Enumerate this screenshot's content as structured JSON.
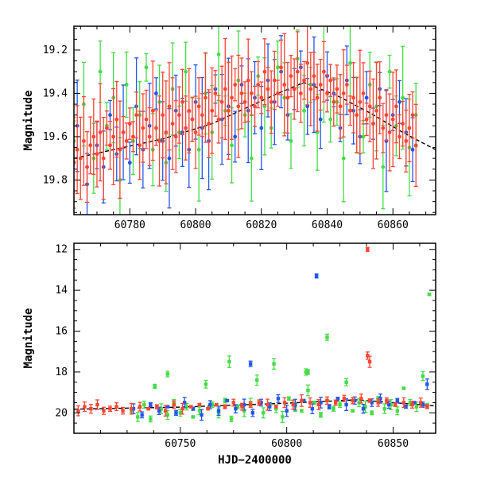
{
  "chart_data": [
    {
      "type": "scatter",
      "title": "",
      "xlabel": "",
      "ylabel": "Magnitude",
      "xlim": [
        60763,
        60873
      ],
      "ylim": [
        19.96,
        19.09
      ],
      "y_inverted": true,
      "grid": false,
      "x_ticks": [
        60780,
        60800,
        60820,
        60840,
        60860
      ],
      "y_ticks": [
        19.2,
        19.4,
        19.6,
        19.8
      ],
      "model_curve": {
        "x": [
          60763,
          60775,
          60790,
          60805,
          60815,
          60825,
          60833,
          60843,
          60853,
          60863,
          60873
        ],
        "y": [
          19.7,
          19.66,
          19.61,
          19.54,
          19.47,
          19.4,
          19.35,
          19.41,
          19.49,
          19.58,
          19.66
        ]
      },
      "series": [
        {
          "color": "#44dd44",
          "x": [
            60763,
            60766,
            60769,
            60771,
            60773,
            60775,
            60777,
            60779,
            60781,
            60783,
            60785,
            60787,
            60789,
            60791,
            60793,
            60795,
            60797,
            60799,
            60801,
            60803,
            60805,
            60807,
            60809,
            60811,
            60813,
            60815,
            60817,
            60819,
            60821,
            60823,
            60825,
            60827,
            60829,
            60831,
            60833,
            60835,
            60837,
            60839,
            60841,
            60843,
            60845,
            60847,
            60849,
            60851,
            60853,
            60855,
            60857,
            60859,
            60861,
            60863,
            60865,
            60867
          ],
          "y": [
            19.62,
            19.45,
            19.7,
            19.3,
            19.55,
            19.42,
            19.8,
            19.36,
            19.62,
            19.5,
            19.28,
            19.66,
            19.44,
            19.72,
            19.38,
            19.58,
            19.3,
            19.52,
            19.66,
            19.4,
            19.58,
            19.22,
            19.48,
            19.64,
            19.34,
            19.5,
            19.7,
            19.32,
            19.46,
            19.56,
            19.28,
            19.42,
            19.62,
            19.24,
            19.48,
            19.36,
            19.58,
            19.3,
            19.52,
            19.44,
            19.7,
            19.26,
            19.5,
            19.6,
            19.36,
            19.46,
            19.74,
            19.3,
            19.55,
            19.42,
            19.65,
            19.5
          ]
        },
        {
          "color": "#2255ee",
          "x": [
            60764,
            60767,
            60770,
            60772,
            60774,
            60776,
            60778,
            60780,
            60782,
            60784,
            60786,
            60788,
            60790,
            60792,
            60794,
            60796,
            60798,
            60800,
            60802,
            60804,
            60806,
            60808,
            60810,
            60812,
            60814,
            60816,
            60818,
            60820,
            60822,
            60824,
            60826,
            60828,
            60830,
            60832,
            60834,
            60836,
            60838,
            60840,
            60842,
            60844,
            60846,
            60848,
            60850,
            60852,
            60854,
            60856,
            60858,
            60860,
            60862,
            60864,
            60866
          ],
          "y": [
            19.55,
            19.82,
            19.64,
            19.74,
            19.5,
            19.68,
            19.58,
            19.72,
            19.46,
            19.66,
            19.55,
            19.4,
            19.62,
            19.7,
            19.48,
            19.58,
            19.66,
            19.44,
            19.56,
            19.62,
            19.38,
            19.52,
            19.46,
            19.6,
            19.36,
            19.48,
            19.42,
            19.56,
            19.34,
            19.44,
            19.3,
            19.5,
            19.38,
            19.28,
            19.46,
            19.36,
            19.52,
            19.32,
            19.4,
            19.56,
            19.34,
            19.48,
            19.6,
            19.42,
            19.54,
            19.38,
            19.62,
            19.5,
            19.44,
            19.58,
            19.66
          ]
        },
        {
          "color": "#ff4433",
          "x": [
            60763,
            60764,
            60765,
            60766,
            60767,
            60768,
            60769,
            60770,
            60771,
            60772,
            60773,
            60774,
            60775,
            60776,
            60777,
            60778,
            60779,
            60780,
            60781,
            60782,
            60783,
            60784,
            60785,
            60786,
            60787,
            60788,
            60789,
            60790,
            60791,
            60792,
            60793,
            60794,
            60795,
            60796,
            60797,
            60798,
            60799,
            60800,
            60801,
            60802,
            60803,
            60804,
            60805,
            60806,
            60807,
            60808,
            60809,
            60810,
            60811,
            60812,
            60813,
            60814,
            60815,
            60816,
            60817,
            60818,
            60819,
            60820,
            60821,
            60822,
            60823,
            60824,
            60825,
            60826,
            60827,
            60828,
            60829,
            60830,
            60831,
            60832,
            60833,
            60834,
            60835,
            60836,
            60837,
            60838,
            60839,
            60840,
            60841,
            60842,
            60843,
            60844,
            60845,
            60846,
            60847,
            60848,
            60849,
            60850,
            60851,
            60852,
            60853,
            60854,
            60855,
            60856,
            60857,
            60858,
            60859,
            60860,
            60861,
            60862,
            60863,
            60864,
            60865,
            60866,
            60867
          ],
          "y": [
            19.72,
            19.66,
            19.7,
            19.62,
            19.74,
            19.64,
            19.6,
            19.68,
            19.58,
            19.7,
            19.56,
            19.64,
            19.6,
            19.52,
            19.66,
            19.58,
            19.62,
            19.54,
            19.6,
            19.5,
            19.64,
            19.56,
            19.52,
            19.6,
            19.48,
            19.56,
            19.62,
            19.5,
            19.58,
            19.46,
            19.54,
            19.6,
            19.5,
            19.44,
            19.56,
            19.48,
            19.52,
            19.58,
            19.46,
            19.5,
            19.42,
            19.54,
            19.48,
            19.4,
            19.52,
            19.44,
            19.38,
            19.48,
            19.42,
            19.36,
            19.46,
            19.4,
            19.44,
            19.34,
            19.4,
            19.46,
            19.36,
            19.42,
            19.3,
            19.38,
            19.44,
            19.34,
            19.4,
            19.28,
            19.36,
            19.42,
            19.32,
            19.38,
            19.3,
            19.4,
            19.34,
            19.26,
            19.38,
            19.32,
            19.42,
            19.36,
            19.3,
            19.4,
            19.34,
            19.44,
            19.38,
            19.46,
            19.4,
            19.36,
            19.48,
            19.42,
            19.5,
            19.44,
            19.4,
            19.52,
            19.46,
            19.54,
            19.48,
            19.42,
            19.56,
            19.5,
            19.58,
            19.52,
            19.46,
            19.6,
            19.54,
            19.62,
            19.56,
            19.5,
            19.64
          ]
        }
      ]
    },
    {
      "type": "scatter",
      "title": "",
      "xlabel": "HJD−2400000",
      "ylabel": "Magnitude",
      "xlim": [
        60700,
        60870
      ],
      "ylim": [
        21.0,
        11.7
      ],
      "y_inverted": true,
      "grid": false,
      "x_ticks": [
        60750,
        60800,
        60850
      ],
      "y_ticks": [
        12,
        14,
        16,
        18,
        20
      ],
      "model_curve": {
        "x": [
          60700,
          60750,
          60800,
          60833,
          60850,
          60870
        ],
        "y": [
          19.82,
          19.72,
          19.53,
          19.36,
          19.5,
          19.66
        ]
      },
      "series": [
        {
          "color": "#44dd44",
          "x": [
            60727,
            60730,
            60733,
            60736,
            60738,
            60741,
            60744,
            60747,
            60750,
            60753,
            60756,
            60759,
            60762,
            60765,
            60768,
            60771,
            60774,
            60777,
            60780,
            60783,
            60786,
            60789,
            60792,
            60795,
            60798,
            60801,
            60804,
            60807,
            60810,
            60813,
            60816,
            60819,
            60822,
            60825,
            60828,
            60831,
            60834,
            60837,
            60840,
            60843,
            60846,
            60849,
            60852,
            60855,
            60858,
            60861,
            60864,
            60866,
            60744,
            60773,
            60794,
            60819,
            60810,
            60809,
            60867
          ],
          "y": [
            19.9,
            20.2,
            19.6,
            20.3,
            18.7,
            19.8,
            20.1,
            19.5,
            20.0,
            19.7,
            20.2,
            19.9,
            18.6,
            19.6,
            20.0,
            19.4,
            20.3,
            19.7,
            19.9,
            19.5,
            18.4,
            20.0,
            19.6,
            19.8,
            20.2,
            19.3,
            19.7,
            19.9,
            18.9,
            19.5,
            20.1,
            19.4,
            19.8,
            19.6,
            18.5,
            19.9,
            19.5,
            19.7,
            20.0,
            19.3,
            19.8,
            19.6,
            19.9,
            18.8,
            19.5,
            19.7,
            18.2,
            19.6,
            18.1,
            17.5,
            17.6,
            16.3,
            18.0,
            18.0,
            14.2
          ]
        },
        {
          "color": "#2255ee",
          "x": [
            60728,
            60732,
            60736,
            60740,
            60744,
            60748,
            60752,
            60756,
            60760,
            60764,
            60768,
            60772,
            60776,
            60780,
            60784,
            60788,
            60792,
            60796,
            60800,
            60804,
            60808,
            60812,
            60816,
            60820,
            60824,
            60828,
            60832,
            60836,
            60840,
            60844,
            60848,
            60852,
            60856,
            60860,
            60864,
            60866,
            60783,
            60814
          ],
          "y": [
            19.8,
            20.1,
            19.6,
            19.9,
            19.7,
            20.0,
            19.5,
            19.8,
            20.1,
            19.6,
            19.9,
            19.4,
            19.8,
            19.6,
            20.0,
            19.5,
            19.7,
            19.3,
            19.9,
            19.6,
            19.4,
            19.8,
            19.5,
            19.7,
            19.3,
            19.6,
            19.4,
            19.8,
            19.5,
            19.3,
            19.6,
            19.4,
            19.7,
            19.5,
            19.6,
            18.6,
            17.6,
            13.3
          ]
        },
        {
          "color": "#ff4433",
          "x": [
            60702,
            60705,
            60708,
            60711,
            60714,
            60717,
            60720,
            60723,
            60727,
            60731,
            60735,
            60739,
            60743,
            60747,
            60751,
            60755,
            60759,
            60763,
            60767,
            60771,
            60775,
            60779,
            60783,
            60787,
            60791,
            60795,
            60799,
            60803,
            60807,
            60811,
            60815,
            60819,
            60823,
            60827,
            60831,
            60835,
            60839,
            60843,
            60847,
            60851,
            60855,
            60859,
            60863,
            60866,
            60838,
            60838,
            60839
          ],
          "y": [
            19.9,
            19.7,
            19.8,
            19.6,
            19.9,
            19.8,
            19.7,
            19.9,
            19.8,
            19.7,
            19.8,
            19.7,
            19.9,
            19.6,
            19.8,
            19.7,
            19.6,
            19.8,
            19.6,
            19.7,
            19.5,
            19.7,
            19.6,
            19.5,
            19.6,
            19.7,
            19.5,
            19.6,
            19.4,
            19.5,
            19.6,
            19.4,
            19.5,
            19.3,
            19.4,
            19.3,
            19.4,
            19.5,
            19.4,
            19.6,
            19.5,
            19.6,
            19.5,
            19.7,
            12.0,
            17.2,
            17.5
          ]
        }
      ]
    }
  ]
}
